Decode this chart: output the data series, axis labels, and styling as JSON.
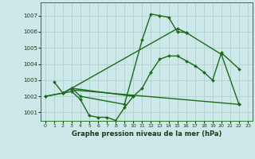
{
  "xlabel": "Graphe pression niveau de la mer (hPa)",
  "xlim": [
    -0.5,
    23.5
  ],
  "ylim": [
    1000.5,
    1007.8
  ],
  "yticks": [
    1001,
    1002,
    1003,
    1004,
    1005,
    1006,
    1007
  ],
  "xticks": [
    0,
    1,
    2,
    3,
    4,
    5,
    6,
    7,
    8,
    9,
    10,
    11,
    12,
    13,
    14,
    15,
    16,
    17,
    18,
    19,
    20,
    21,
    22,
    23
  ],
  "bg_color": "#cce8e8",
  "grid_color": "#b0d0d0",
  "line_color": "#1a6b1a",
  "line_width": 1.0,
  "marker": "D",
  "marker_size": 2.0,
  "series": [
    {
      "x": [
        0,
        2,
        3,
        10,
        11,
        12,
        13,
        14,
        15,
        16,
        17,
        18,
        19,
        20,
        22
      ],
      "y": [
        1002.0,
        1002.2,
        1002.5,
        1002.0,
        1002.5,
        1003.5,
        1004.3,
        1004.5,
        1004.5,
        1004.2,
        1003.9,
        1003.5,
        1003.0,
        1004.7,
        1003.7
      ]
    },
    {
      "x": [
        1,
        2,
        3,
        4,
        9,
        11,
        12,
        13,
        14,
        15,
        16
      ],
      "y": [
        1002.9,
        1002.2,
        1002.5,
        1002.0,
        1001.5,
        1005.5,
        1007.1,
        1007.0,
        1006.9,
        1006.0,
        1005.95
      ]
    },
    {
      "x": [
        0,
        2,
        3,
        4,
        5,
        6,
        7,
        8,
        9,
        10
      ],
      "y": [
        1002.0,
        1002.2,
        1002.3,
        1001.8,
        1000.8,
        1000.7,
        1000.7,
        1000.5,
        1001.3,
        1002.0
      ]
    },
    {
      "x": [
        2,
        3,
        15,
        16,
        20,
        22
      ],
      "y": [
        1002.2,
        1002.5,
        1006.2,
        1005.95,
        1004.6,
        1001.5
      ]
    },
    {
      "x": [
        3,
        22
      ],
      "y": [
        1002.4,
        1001.5
      ]
    }
  ]
}
